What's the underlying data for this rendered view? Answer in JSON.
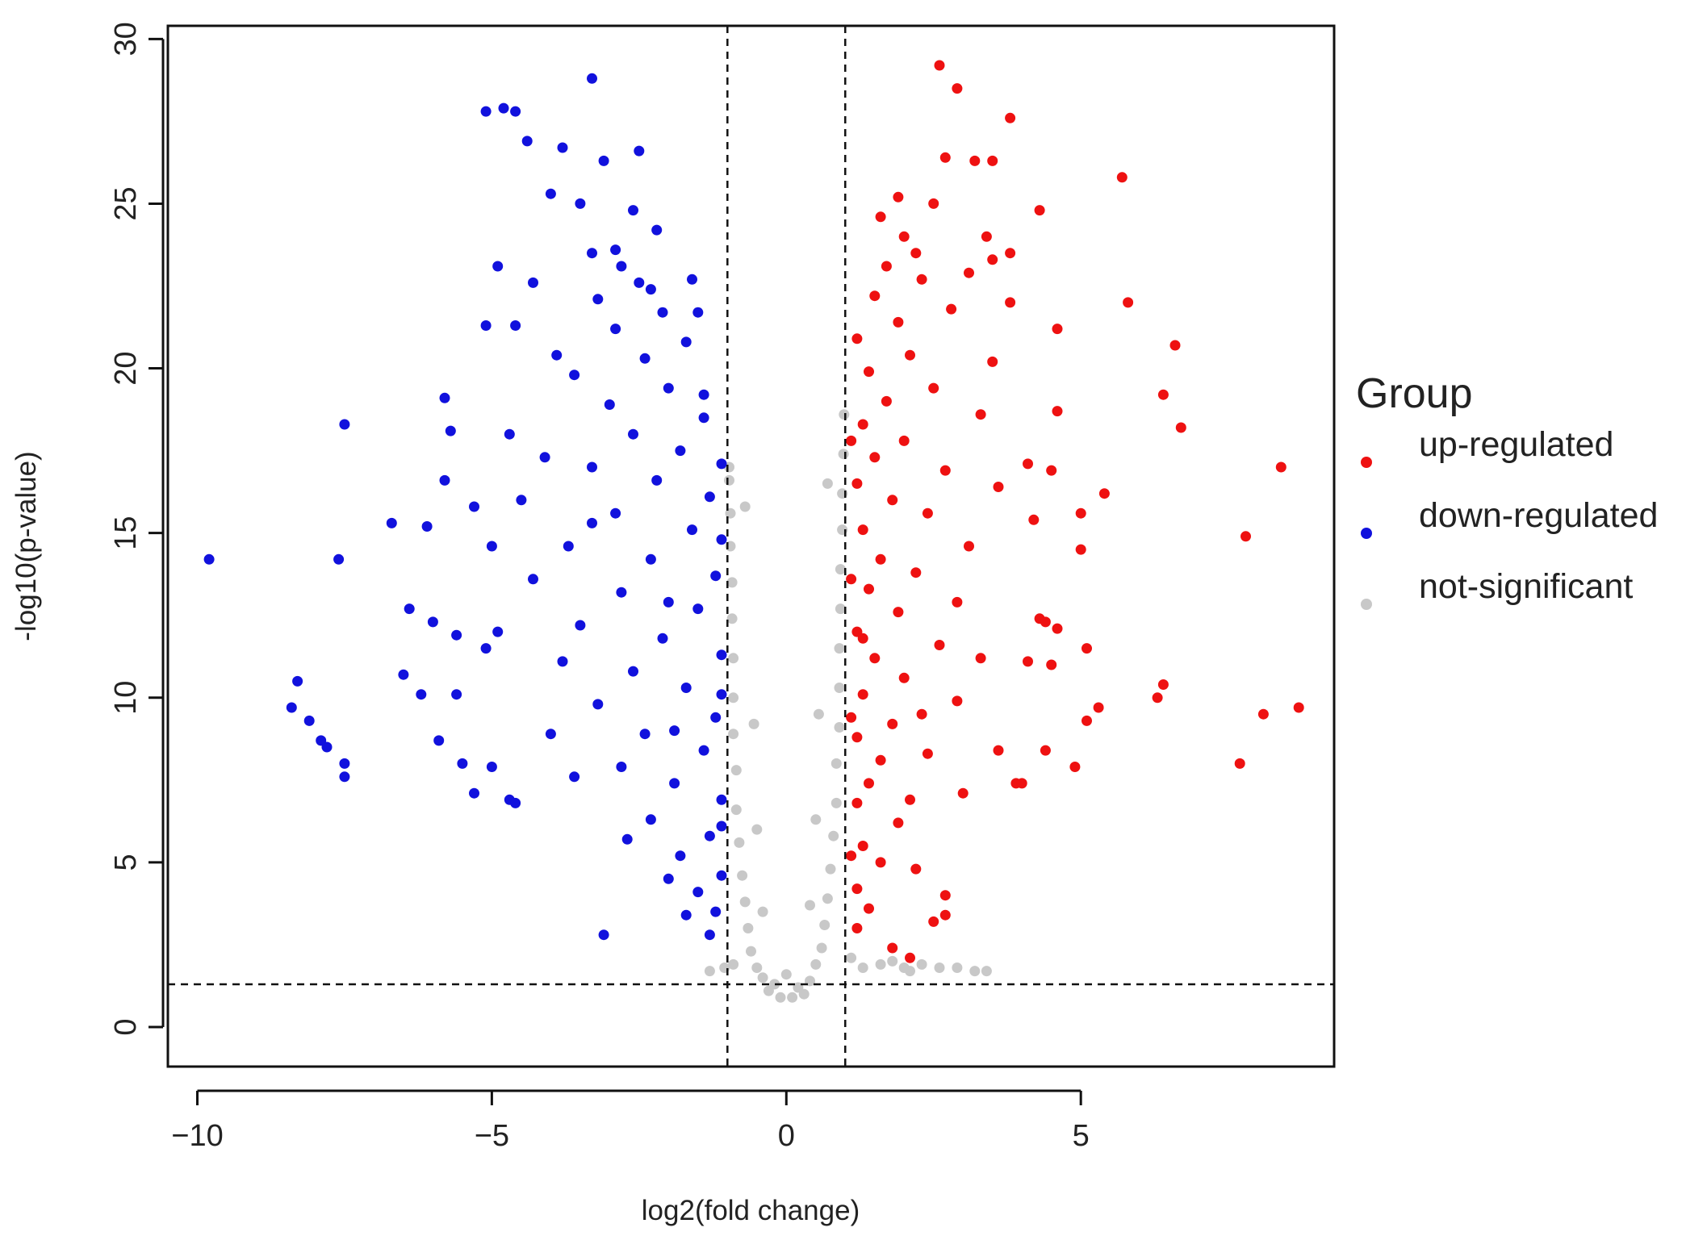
{
  "chart_data": {
    "type": "scatter",
    "title": "",
    "xlabel": "log2(fold change)",
    "ylabel": "-log10(p-value)",
    "xlim": [
      -10.5,
      9.3
    ],
    "ylim": [
      -1.2,
      30.4
    ],
    "xticks": [
      -10,
      -5,
      0,
      5
    ],
    "xtick_labels": [
      "-10",
      "-5",
      "0",
      "5"
    ],
    "yticks": [
      0,
      5,
      10,
      15,
      20,
      25,
      30
    ],
    "ytick_labels": [
      "0",
      "5",
      "10",
      "15",
      "20",
      "25",
      "30"
    ],
    "grid": false,
    "thresholds": {
      "log2fc": [
        -1,
        1
      ],
      "neg_log10_p": 1.3
    },
    "legend": {
      "title": "Group",
      "position": "right",
      "entries": [
        "up-regulated",
        "down-regulated",
        "not-significant"
      ]
    },
    "colors": {
      "up-regulated": "#ee1111",
      "down-regulated": "#1111dd",
      "not-significant": "#c8c8c8"
    },
    "series": [
      {
        "name": "up-regulated",
        "points": [
          [
            2.6,
            29.2
          ],
          [
            2.9,
            28.5
          ],
          [
            3.8,
            27.6
          ],
          [
            2.7,
            26.4
          ],
          [
            3.5,
            26.3
          ],
          [
            3.2,
            26.3
          ],
          [
            5.7,
            25.8
          ],
          [
            2.5,
            25.0
          ],
          [
            4.3,
            24.8
          ],
          [
            3.4,
            24.0
          ],
          [
            3.5,
            23.3
          ],
          [
            3.8,
            23.5
          ],
          [
            2.2,
            23.5
          ],
          [
            5.8,
            22.0
          ],
          [
            3.1,
            22.9
          ],
          [
            4.6,
            21.2
          ],
          [
            3.8,
            22.0
          ],
          [
            6.6,
            20.7
          ],
          [
            3.5,
            20.2
          ],
          [
            6.4,
            19.2
          ],
          [
            6.7,
            18.2
          ],
          [
            4.6,
            18.7
          ],
          [
            8.4,
            17.0
          ],
          [
            4.1,
            17.1
          ],
          [
            4.5,
            16.9
          ],
          [
            5.4,
            16.2
          ],
          [
            4.2,
            15.4
          ],
          [
            5.0,
            15.6
          ],
          [
            7.8,
            14.9
          ],
          [
            5.0,
            14.5
          ],
          [
            4.3,
            12.4
          ],
          [
            4.4,
            12.3
          ],
          [
            4.6,
            12.1
          ],
          [
            5.1,
            11.5
          ],
          [
            4.1,
            11.1
          ],
          [
            4.5,
            11.0
          ],
          [
            6.4,
            10.4
          ],
          [
            6.3,
            10.0
          ],
          [
            5.3,
            9.7
          ],
          [
            5.1,
            9.3
          ],
          [
            8.7,
            9.7
          ],
          [
            8.1,
            9.5
          ],
          [
            7.7,
            8.0
          ],
          [
            4.4,
            8.4
          ],
          [
            3.6,
            8.4
          ],
          [
            4.9,
            7.9
          ],
          [
            3.9,
            7.4
          ],
          [
            4.0,
            7.4
          ],
          [
            3.0,
            7.1
          ],
          [
            2.7,
            4.0
          ],
          [
            2.7,
            3.4
          ],
          [
            2.5,
            3.2
          ],
          [
            1.8,
            2.4
          ],
          [
            2.1,
            2.1
          ],
          [
            1.2,
            3.0
          ],
          [
            1.4,
            3.6
          ],
          [
            1.2,
            4.2
          ],
          [
            1.6,
            5.0
          ],
          [
            1.3,
            5.5
          ],
          [
            1.9,
            6.2
          ],
          [
            1.2,
            6.8
          ],
          [
            2.1,
            6.9
          ],
          [
            1.4,
            7.4
          ],
          [
            1.6,
            8.1
          ],
          [
            2.4,
            8.3
          ],
          [
            1.2,
            8.8
          ],
          [
            1.8,
            9.2
          ],
          [
            2.3,
            9.5
          ],
          [
            1.3,
            10.1
          ],
          [
            2.0,
            10.6
          ],
          [
            1.5,
            11.2
          ],
          [
            2.6,
            11.6
          ],
          [
            1.2,
            12.0
          ],
          [
            1.9,
            12.6
          ],
          [
            2.9,
            12.9
          ],
          [
            1.4,
            13.3
          ],
          [
            2.2,
            13.8
          ],
          [
            1.6,
            14.2
          ],
          [
            3.1,
            14.6
          ],
          [
            1.3,
            15.1
          ],
          [
            2.4,
            15.6
          ],
          [
            1.8,
            16.0
          ],
          [
            1.2,
            16.5
          ],
          [
            2.7,
            16.9
          ],
          [
            1.5,
            17.3
          ],
          [
            2.0,
            17.8
          ],
          [
            1.3,
            18.3
          ],
          [
            3.3,
            18.6
          ],
          [
            1.7,
            19.0
          ],
          [
            2.5,
            19.4
          ],
          [
            1.4,
            19.9
          ],
          [
            2.1,
            20.4
          ],
          [
            1.2,
            20.9
          ],
          [
            1.9,
            21.4
          ],
          [
            2.8,
            21.8
          ],
          [
            1.5,
            22.2
          ],
          [
            2.3,
            22.7
          ],
          [
            1.7,
            23.1
          ],
          [
            2.0,
            24.0
          ],
          [
            1.6,
            24.6
          ],
          [
            1.9,
            25.2
          ],
          [
            1.3,
            11.8
          ],
          [
            1.1,
            5.2
          ],
          [
            1.1,
            9.4
          ],
          [
            1.1,
            13.6
          ],
          [
            1.1,
            17.8
          ],
          [
            2.9,
            9.9
          ],
          [
            3.3,
            11.2
          ],
          [
            2.2,
            4.8
          ],
          [
            3.6,
            16.4
          ]
        ]
      },
      {
        "name": "down-regulated",
        "points": [
          [
            -3.3,
            28.8
          ],
          [
            -5.1,
            27.8
          ],
          [
            -4.8,
            27.9
          ],
          [
            -4.6,
            27.8
          ],
          [
            -4.4,
            26.9
          ],
          [
            -3.8,
            26.7
          ],
          [
            -2.5,
            26.6
          ],
          [
            -3.1,
            26.3
          ],
          [
            -4.0,
            25.3
          ],
          [
            -3.5,
            25.0
          ],
          [
            -2.6,
            24.8
          ],
          [
            -2.2,
            24.2
          ],
          [
            -4.9,
            23.1
          ],
          [
            -3.3,
            23.5
          ],
          [
            -2.9,
            23.6
          ],
          [
            -4.3,
            22.6
          ],
          [
            -1.6,
            22.7
          ],
          [
            -5.1,
            21.3
          ],
          [
            -4.6,
            21.3
          ],
          [
            -1.5,
            21.7
          ],
          [
            -5.8,
            19.1
          ],
          [
            -7.5,
            18.3
          ],
          [
            -5.7,
            18.1
          ],
          [
            -4.7,
            18.0
          ],
          [
            -5.8,
            16.6
          ],
          [
            -5.3,
            15.8
          ],
          [
            -4.5,
            16.0
          ],
          [
            -6.7,
            15.3
          ],
          [
            -6.1,
            15.2
          ],
          [
            -5.0,
            14.6
          ],
          [
            -9.8,
            14.2
          ],
          [
            -7.6,
            14.2
          ],
          [
            -6.4,
            12.7
          ],
          [
            -6.0,
            12.3
          ],
          [
            -5.6,
            11.9
          ],
          [
            -5.1,
            11.5
          ],
          [
            -6.5,
            10.7
          ],
          [
            -6.2,
            10.1
          ],
          [
            -5.6,
            10.1
          ],
          [
            -8.3,
            10.5
          ],
          [
            -8.4,
            9.7
          ],
          [
            -8.1,
            9.3
          ],
          [
            -7.9,
            8.7
          ],
          [
            -7.8,
            8.5
          ],
          [
            -7.5,
            8.0
          ],
          [
            -7.5,
            7.6
          ],
          [
            -5.9,
            8.7
          ],
          [
            -5.5,
            8.0
          ],
          [
            -5.0,
            7.9
          ],
          [
            -5.3,
            7.1
          ],
          [
            -4.7,
            6.9
          ],
          [
            -4.6,
            6.8
          ],
          [
            -3.1,
            2.8
          ],
          [
            -1.7,
            3.4
          ],
          [
            -1.3,
            2.8
          ],
          [
            -1.2,
            3.5
          ],
          [
            -1.5,
            4.1
          ],
          [
            -1.1,
            4.6
          ],
          [
            -1.8,
            5.2
          ],
          [
            -1.3,
            5.8
          ],
          [
            -2.3,
            6.3
          ],
          [
            -1.1,
            6.9
          ],
          [
            -1.9,
            7.4
          ],
          [
            -2.8,
            7.9
          ],
          [
            -1.4,
            8.4
          ],
          [
            -2.4,
            8.9
          ],
          [
            -1.2,
            9.4
          ],
          [
            -3.2,
            9.8
          ],
          [
            -1.7,
            10.3
          ],
          [
            -2.6,
            10.8
          ],
          [
            -1.1,
            11.3
          ],
          [
            -2.1,
            11.8
          ],
          [
            -3.5,
            12.2
          ],
          [
            -1.5,
            12.7
          ],
          [
            -2.8,
            13.2
          ],
          [
            -1.2,
            13.7
          ],
          [
            -2.3,
            14.2
          ],
          [
            -3.7,
            14.6
          ],
          [
            -1.6,
            15.1
          ],
          [
            -2.9,
            15.6
          ],
          [
            -1.3,
            16.1
          ],
          [
            -2.2,
            16.6
          ],
          [
            -3.3,
            17.0
          ],
          [
            -1.8,
            17.5
          ],
          [
            -2.6,
            18.0
          ],
          [
            -1.4,
            18.5
          ],
          [
            -3.0,
            18.9
          ],
          [
            -2.0,
            19.4
          ],
          [
            -3.6,
            19.8
          ],
          [
            -2.4,
            20.3
          ],
          [
            -1.7,
            20.8
          ],
          [
            -2.9,
            21.2
          ],
          [
            -2.1,
            21.7
          ],
          [
            -3.2,
            22.1
          ],
          [
            -2.5,
            22.6
          ],
          [
            -2.8,
            23.1
          ],
          [
            -3.9,
            20.4
          ],
          [
            -4.1,
            17.3
          ],
          [
            -4.3,
            13.6
          ],
          [
            -3.8,
            11.1
          ],
          [
            -4.0,
            8.9
          ],
          [
            -3.6,
            7.6
          ],
          [
            -1.1,
            14.8
          ],
          [
            -1.1,
            10.1
          ],
          [
            -1.1,
            6.1
          ],
          [
            -1.1,
            17.1
          ],
          [
            -2.0,
            4.5
          ],
          [
            -1.4,
            19.2
          ],
          [
            -2.7,
            5.7
          ],
          [
            -3.3,
            15.3
          ],
          [
            -2.0,
            12.9
          ],
          [
            -1.9,
            9.0
          ],
          [
            -4.9,
            12.0
          ],
          [
            -2.3,
            22.4
          ]
        ]
      },
      {
        "name": "not-significant",
        "points": [
          [
            -0.1,
            0.9
          ],
          [
            0.1,
            0.9
          ],
          [
            0.3,
            1.0
          ],
          [
            -0.3,
            1.1
          ],
          [
            0.2,
            1.2
          ],
          [
            -0.2,
            1.3
          ],
          [
            0.4,
            1.4
          ],
          [
            -0.4,
            1.5
          ],
          [
            0.0,
            1.6
          ],
          [
            -0.5,
            1.8
          ],
          [
            0.5,
            1.9
          ],
          [
            -0.6,
            2.3
          ],
          [
            0.6,
            2.4
          ],
          [
            -0.65,
            3.0
          ],
          [
            0.65,
            3.1
          ],
          [
            -0.7,
            3.8
          ],
          [
            0.7,
            3.9
          ],
          [
            -0.75,
            4.6
          ],
          [
            0.75,
            4.8
          ],
          [
            -0.8,
            5.6
          ],
          [
            0.8,
            5.8
          ],
          [
            -0.85,
            6.6
          ],
          [
            0.85,
            6.8
          ],
          [
            -0.85,
            7.8
          ],
          [
            0.85,
            8.0
          ],
          [
            -0.9,
            8.9
          ],
          [
            0.9,
            9.1
          ],
          [
            -0.9,
            10.0
          ],
          [
            0.9,
            10.3
          ],
          [
            -0.9,
            11.2
          ],
          [
            0.9,
            11.5
          ],
          [
            -0.92,
            12.4
          ],
          [
            0.92,
            12.7
          ],
          [
            -0.92,
            13.5
          ],
          [
            0.92,
            13.9
          ],
          [
            -0.95,
            14.6
          ],
          [
            0.95,
            15.1
          ],
          [
            -0.95,
            15.6
          ],
          [
            0.95,
            16.2
          ],
          [
            -0.97,
            16.6
          ],
          [
            0.97,
            17.4
          ],
          [
            -0.97,
            17.0
          ],
          [
            0.98,
            18.6
          ],
          [
            -0.7,
            15.8
          ],
          [
            0.7,
            16.5
          ],
          [
            -0.5,
            6.0
          ],
          [
            0.5,
            6.3
          ],
          [
            0.55,
            9.5
          ],
          [
            -0.55,
            9.2
          ],
          [
            -0.4,
            3.5
          ],
          [
            0.4,
            3.7
          ],
          [
            1.3,
            1.8
          ],
          [
            1.6,
            1.9
          ],
          [
            2.0,
            1.8
          ],
          [
            2.3,
            1.9
          ],
          [
            2.6,
            1.8
          ],
          [
            2.9,
            1.8
          ],
          [
            3.2,
            1.7
          ],
          [
            3.4,
            1.7
          ],
          [
            2.1,
            1.7
          ],
          [
            1.8,
            2.0
          ],
          [
            1.1,
            2.1
          ],
          [
            -1.05,
            1.8
          ],
          [
            -1.3,
            1.7
          ],
          [
            -0.9,
            1.9
          ]
        ]
      }
    ]
  }
}
